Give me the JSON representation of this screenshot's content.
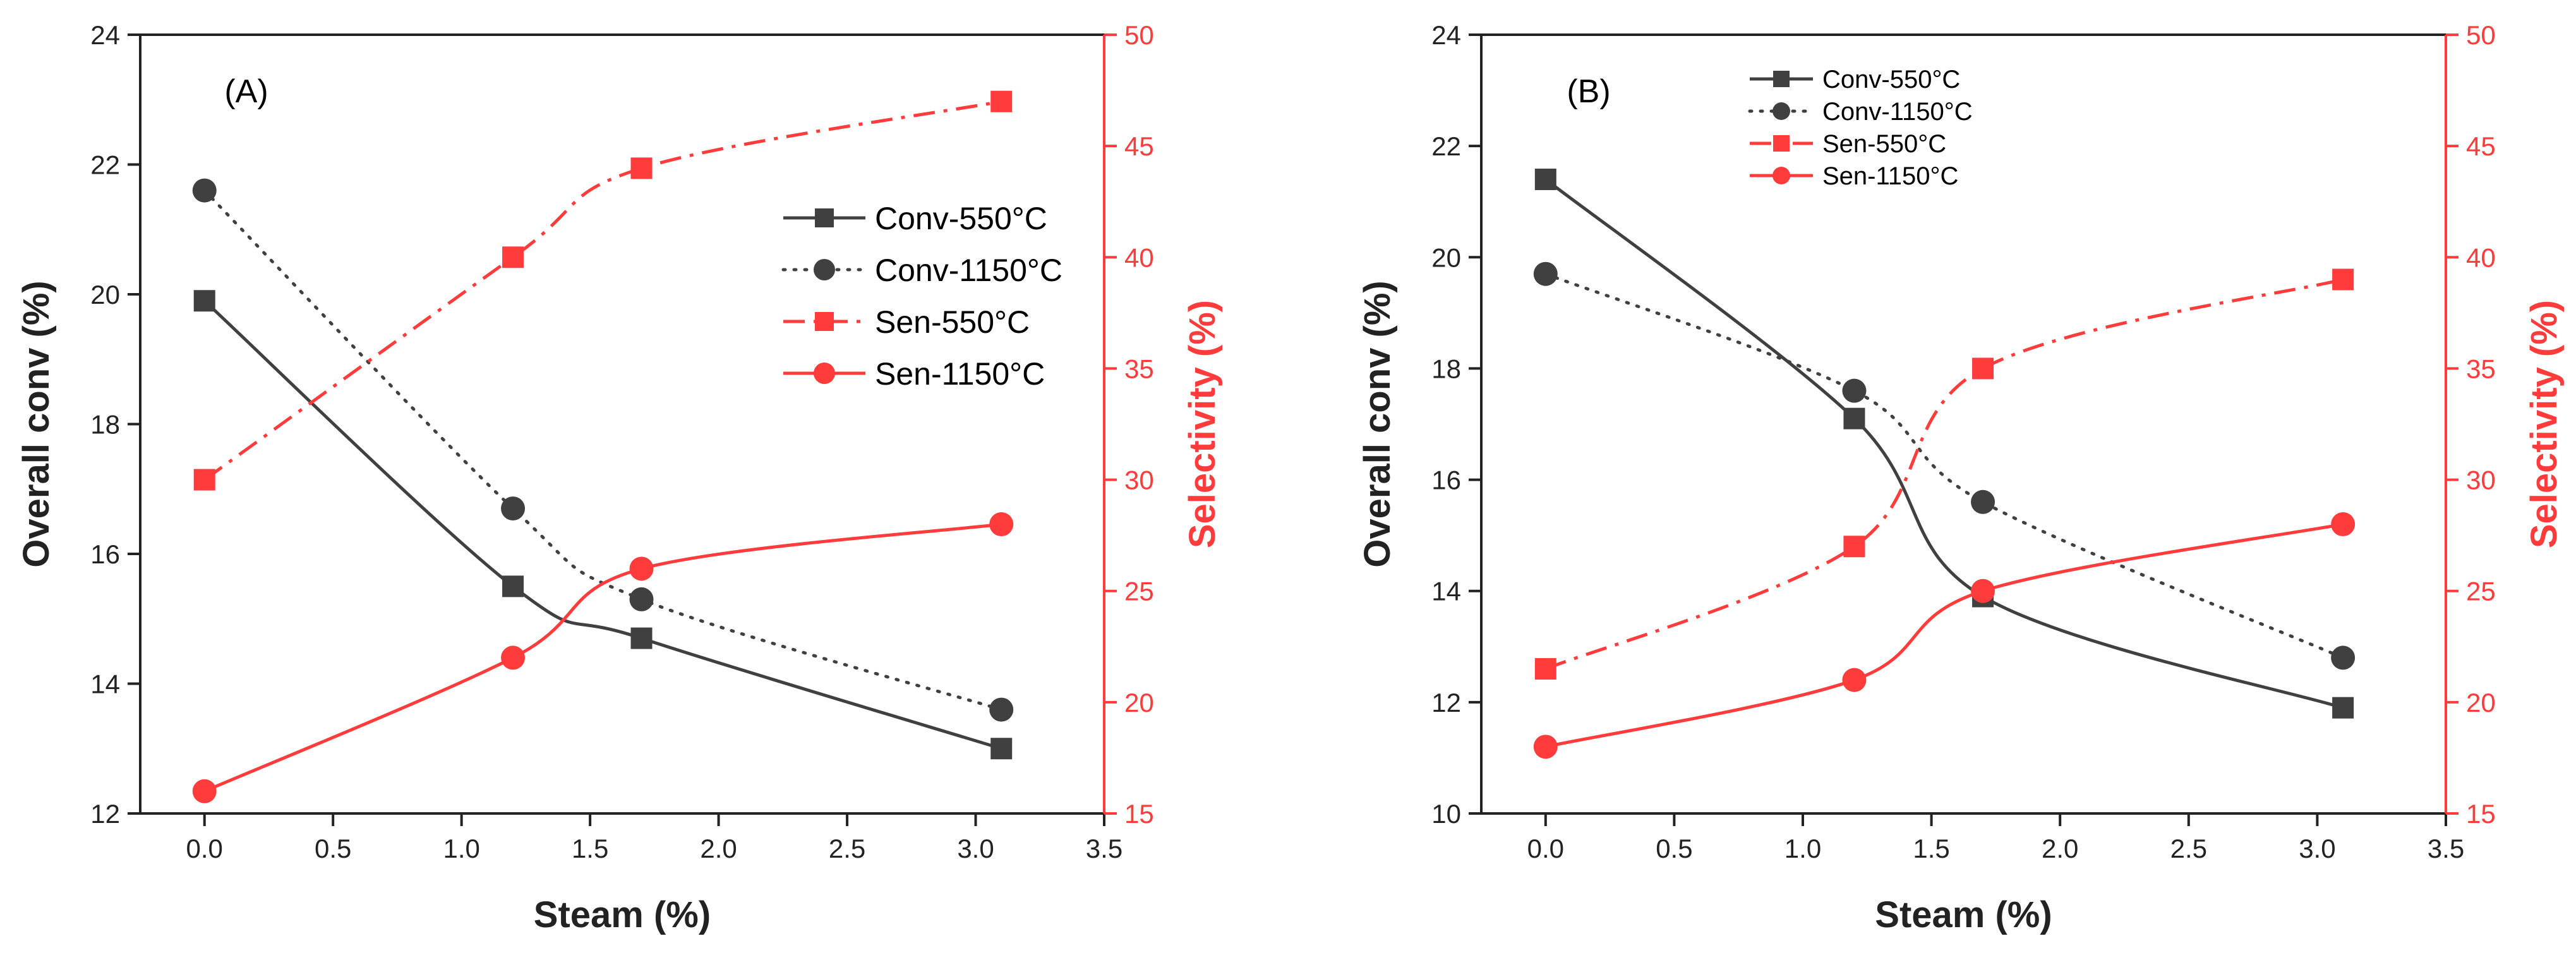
{
  "colors": {
    "conv": "#404040",
    "sen": "#ff3b3b",
    "axis": "#222222"
  },
  "chart_data": [
    {
      "type": "line",
      "panel_label": "(A)",
      "xlabel": "Steam (%)",
      "ylabel": "Overall conv (%)",
      "y2label": "Selectivity (%)",
      "xlim": [
        -0.25,
        3.5
      ],
      "ylim": [
        12,
        24
      ],
      "y2lim": [
        15,
        50
      ],
      "xticks": [
        "0.0",
        "0.5",
        "1.0",
        "1.5",
        "2.0",
        "2.5",
        "3.0",
        "3.5"
      ],
      "yticks": [
        "12",
        "14",
        "16",
        "18",
        "20",
        "22",
        "24"
      ],
      "y2ticks": [
        "15",
        "20",
        "25",
        "30",
        "35",
        "40",
        "45",
        "50"
      ],
      "legend_position": "center-right",
      "series": [
        {
          "name": "Conv-550°C",
          "axis": "left",
          "marker": "square",
          "dash": "solid",
          "x": [
            0,
            1.2,
            1.7,
            3.1
          ],
          "values": [
            19.9,
            15.5,
            14.7,
            13.0
          ]
        },
        {
          "name": "Conv-1150°C",
          "axis": "left",
          "marker": "circle",
          "dash": "dot",
          "x": [
            0,
            1.2,
            1.7,
            3.1
          ],
          "values": [
            21.6,
            16.7,
            15.3,
            13.6
          ]
        },
        {
          "name": "Sen-550°C",
          "axis": "right",
          "marker": "square",
          "dash": "dashdot",
          "x": [
            0,
            1.2,
            1.7,
            3.1
          ],
          "values": [
            30,
            40,
            44,
            47
          ]
        },
        {
          "name": "Sen-1150°C",
          "axis": "right",
          "marker": "circle",
          "dash": "solid",
          "x": [
            0,
            1.2,
            1.7,
            3.1
          ],
          "values": [
            16,
            22,
            26,
            28
          ]
        }
      ]
    },
    {
      "type": "line",
      "panel_label": "(B)",
      "xlabel": "Steam (%)",
      "ylabel": "Overall conv (%)",
      "y2label": "Selectivity (%)",
      "xlim": [
        -0.25,
        3.5
      ],
      "ylim": [
        10,
        24
      ],
      "y2lim": [
        15,
        50
      ],
      "xticks": [
        "0.0",
        "0.5",
        "1.0",
        "1.5",
        "2.0",
        "2.5",
        "3.0",
        "3.5"
      ],
      "yticks": [
        "10",
        "12",
        "14",
        "16",
        "18",
        "20",
        "22",
        "24"
      ],
      "y2ticks": [
        "15",
        "20",
        "25",
        "30",
        "35",
        "40",
        "45",
        "50"
      ],
      "legend_position": "top-left",
      "series": [
        {
          "name": "Conv-550°C",
          "axis": "left",
          "marker": "square",
          "dash": "solid",
          "x": [
            0,
            1.2,
            1.7,
            3.1
          ],
          "values": [
            21.4,
            17.1,
            13.9,
            11.9
          ]
        },
        {
          "name": "Conv-1150°C",
          "axis": "left",
          "marker": "circle",
          "dash": "dot",
          "x": [
            0,
            1.2,
            1.7,
            3.1
          ],
          "values": [
            19.7,
            17.6,
            15.6,
            12.8
          ]
        },
        {
          "name": "Sen-550°C",
          "axis": "right",
          "marker": "square",
          "dash": "dashdot",
          "x": [
            0,
            1.2,
            1.7,
            3.1
          ],
          "values": [
            21.5,
            27,
            35,
            39
          ]
        },
        {
          "name": "Sen-1150°C",
          "axis": "right",
          "marker": "circle",
          "dash": "solid",
          "x": [
            0,
            1.2,
            1.7,
            3.1
          ],
          "values": [
            18,
            21,
            25,
            28
          ]
        }
      ]
    }
  ]
}
